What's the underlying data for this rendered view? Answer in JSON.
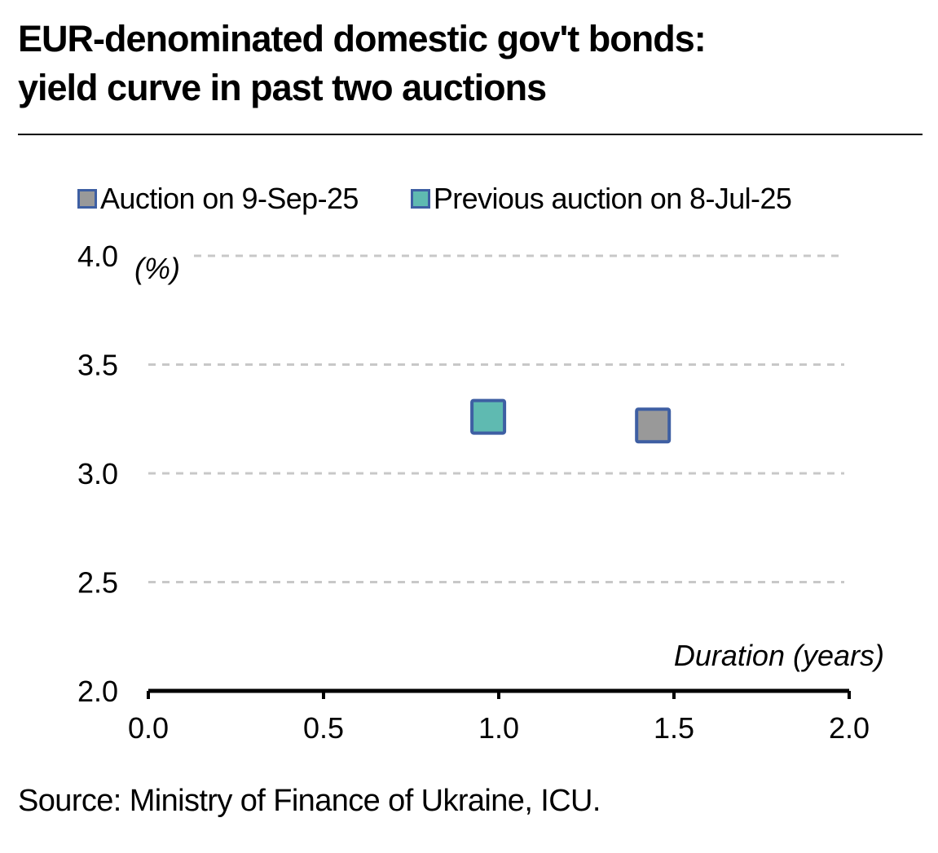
{
  "title_line1": "EUR-denominated domestic gov't bonds:",
  "title_line2": "yield curve in past two auctions",
  "source": "Source: Ministry of Finance of Ukraine, ICU.",
  "colors": {
    "auction_current": "#999999",
    "auction_previous": "#5fbab1",
    "marker_border": "#3e5fa3",
    "grid": "#c8c8c8"
  },
  "chart_data": {
    "type": "scatter",
    "title": "EUR-denominated domestic gov't bonds: yield curve in past two auctions",
    "xlabel": "Duration (years)",
    "ylabel": "(%)",
    "xlim": [
      0.0,
      2.0
    ],
    "ylim": [
      2.0,
      4.0
    ],
    "x_ticks": [
      "0.0",
      "0.5",
      "1.0",
      "1.5",
      "2.0"
    ],
    "y_ticks": [
      "2.0",
      "2.5",
      "3.0",
      "3.5",
      "4.0"
    ],
    "grid": "horizontal dashed",
    "legend_position": "top",
    "series": [
      {
        "name": "Auction on 9-Sep-25",
        "color": "#999999",
        "points": [
          {
            "x": 1.44,
            "y": 3.22
          }
        ]
      },
      {
        "name": "Previous auction on 8-Jul-25",
        "color": "#5fbab1",
        "points": [
          {
            "x": 0.97,
            "y": 3.26
          }
        ]
      }
    ]
  }
}
